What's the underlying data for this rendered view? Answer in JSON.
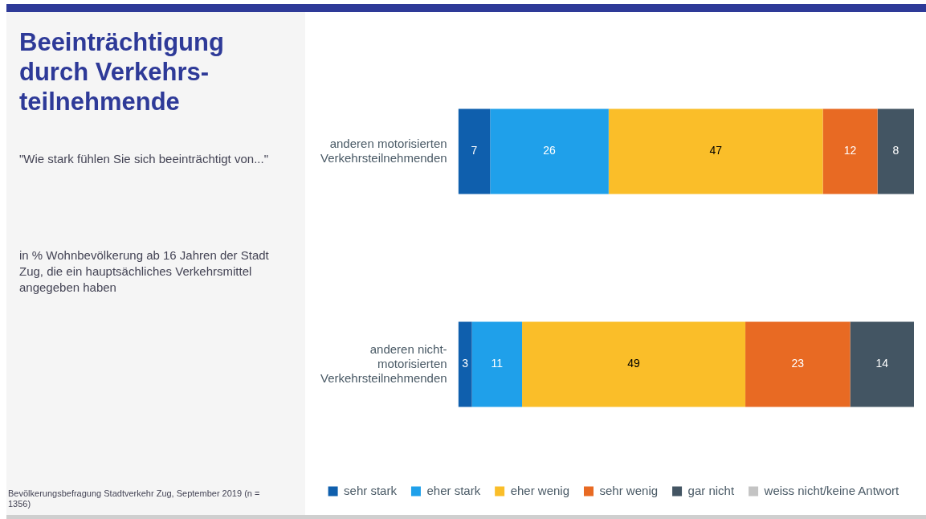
{
  "chart_data": {
    "type": "bar",
    "orientation": "horizontal",
    "stacked": true,
    "title": "Beeinträchtigung durch Verkehrs-teilnehmende",
    "subtitle": "\"Wie stark fühlen Sie sich beeinträchtigt von...\"",
    "annotations": [
      "in % Wohnbevölkerung ab 16 Jahren der Stadt Zug, die ein hauptsächliches Verkehrsmittel angegeben haben",
      "Bevölkerungsbefragung Stadtverkehr Zug, September 2019 (n = 1356)"
    ],
    "categories": [
      "anderen motorisierten Verkehrsteilnehmenden",
      "anderen nicht-motorisierten Verkehrsteilnehmenden"
    ],
    "series": [
      {
        "name": "sehr stark",
        "color": "#0f5fad",
        "values": [
          7,
          3
        ],
        "value_labels": [
          "7",
          "3"
        ]
      },
      {
        "name": "eher stark",
        "color": "#1fa0ea",
        "values": [
          26,
          11
        ],
        "value_labels": [
          "26",
          "11"
        ]
      },
      {
        "name": "eher wenig",
        "color": "#fabe29",
        "values": [
          47,
          49
        ],
        "value_labels": [
          "47",
          "49"
        ]
      },
      {
        "name": "sehr wenig",
        "color": "#e86a23",
        "values": [
          12,
          23
        ],
        "value_labels": [
          "12",
          "23"
        ]
      },
      {
        "name": "gar nicht",
        "color": "#435563",
        "values": [
          8,
          14
        ],
        "value_labels": [
          "8",
          "14"
        ]
      },
      {
        "name": "weiss nicht/keine Antwort",
        "color": "#c4c4c4",
        "values": [
          0,
          0
        ],
        "value_labels": [
          null,
          null
        ]
      }
    ],
    "xlim": [
      0,
      100
    ],
    "legend": "bottom",
    "tick_labels": "y",
    "grid": false
  }
}
